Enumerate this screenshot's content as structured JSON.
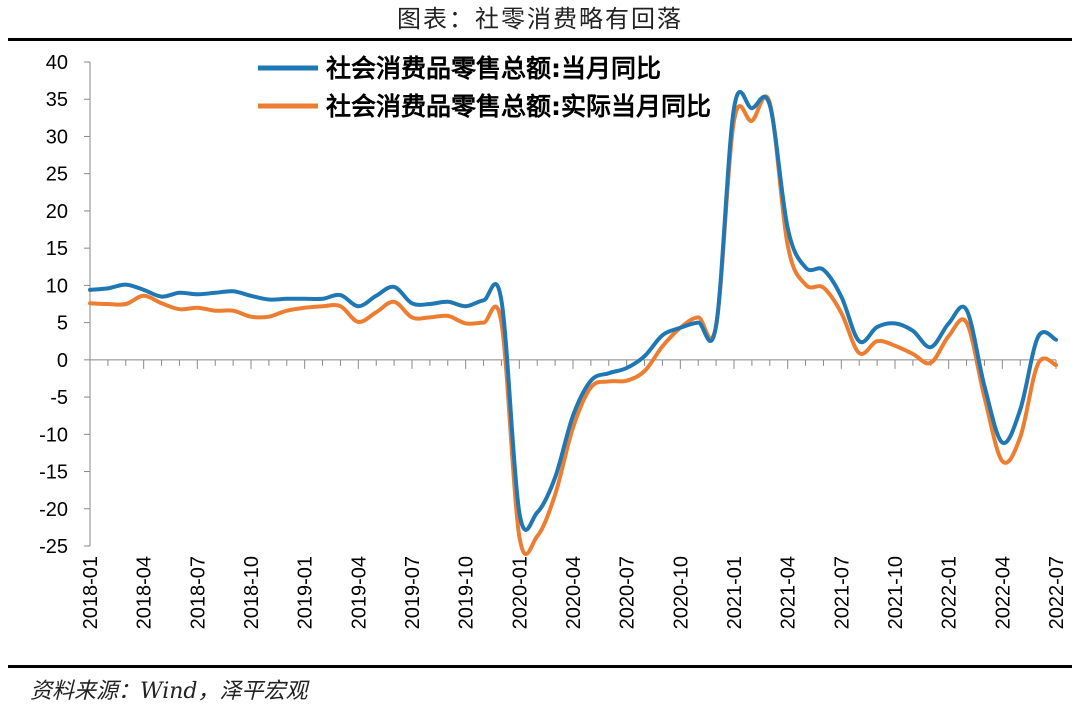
{
  "figure": {
    "title": "图表：社零消费略有回落",
    "source": "资料来源：Wind，泽平宏观"
  },
  "chart_data": {
    "type": "line",
    "title": "",
    "xlabel": "",
    "ylabel": "",
    "ylim": [
      -25,
      40
    ],
    "y_ticks": [
      -25,
      -20,
      -15,
      -10,
      -5,
      0,
      5,
      10,
      15,
      20,
      25,
      30,
      35,
      40
    ],
    "x_tick_labels": [
      "2018-01",
      "2018-04",
      "2018-07",
      "2018-10",
      "2019-01",
      "2019-04",
      "2019-07",
      "2019-10",
      "2020-01",
      "2020-04",
      "2020-07",
      "2020-10",
      "2021-01",
      "2021-04",
      "2021-07",
      "2021-10",
      "2022-01",
      "2022-04",
      "2022-07"
    ],
    "grid": false,
    "legend_position": "top-center",
    "x": [
      "2018-01",
      "2018-02",
      "2018-03",
      "2018-04",
      "2018-05",
      "2018-06",
      "2018-07",
      "2018-08",
      "2018-09",
      "2018-10",
      "2018-11",
      "2018-12",
      "2019-01",
      "2019-02",
      "2019-03",
      "2019-04",
      "2019-05",
      "2019-06",
      "2019-07",
      "2019-08",
      "2019-09",
      "2019-10",
      "2019-11",
      "2019-12",
      "2020-01",
      "2020-02",
      "2020-03",
      "2020-04",
      "2020-05",
      "2020-06",
      "2020-07",
      "2020-08",
      "2020-09",
      "2020-10",
      "2020-11",
      "2020-12",
      "2021-01",
      "2021-02",
      "2021-03",
      "2021-04",
      "2021-05",
      "2021-06",
      "2021-07",
      "2021-08",
      "2021-09",
      "2021-10",
      "2021-11",
      "2021-12",
      "2022-01",
      "2022-02",
      "2022-03",
      "2022-04",
      "2022-05",
      "2022-06",
      "2022-07"
    ],
    "series": [
      {
        "name": "社会消费品零售总额:当月同比",
        "color": "#1f77b4",
        "values": [
          9.4,
          9.6,
          10.1,
          9.4,
          8.5,
          9.0,
          8.8,
          9.0,
          9.2,
          8.6,
          8.1,
          8.2,
          8.2,
          8.2,
          8.7,
          7.2,
          8.6,
          9.8,
          7.6,
          7.5,
          7.8,
          7.2,
          8.0,
          8.0,
          -20.5,
          -20.5,
          -15.8,
          -7.5,
          -2.8,
          -1.8,
          -1.1,
          0.5,
          3.3,
          4.3,
          5.0,
          4.6,
          33.8,
          33.8,
          34.2,
          17.7,
          12.4,
          12.1,
          8.5,
          2.5,
          4.4,
          4.9,
          3.9,
          1.7,
          4.9,
          6.7,
          -3.5,
          -11.1,
          -6.7,
          3.1,
          2.7
        ]
      },
      {
        "name": "社会消费品零售总额:实际当月同比",
        "color": "#ed7d31",
        "values": [
          7.6,
          7.5,
          7.5,
          8.6,
          7.6,
          6.8,
          7.0,
          6.6,
          6.6,
          5.8,
          5.8,
          6.6,
          7.0,
          7.2,
          7.2,
          5.1,
          6.4,
          7.8,
          5.7,
          5.7,
          5.9,
          4.9,
          5.0,
          5.0,
          -23.7,
          -23.7,
          -18.1,
          -9.1,
          -3.7,
          -2.9,
          -2.8,
          -1.5,
          1.8,
          4.3,
          5.7,
          4.6,
          32.1,
          32.1,
          34.5,
          15.4,
          10.1,
          9.7,
          6.3,
          0.9,
          2.5,
          1.9,
          0.8,
          -0.4,
          3.2,
          5.0,
          -5.0,
          -13.6,
          -10.4,
          -0.5,
          -0.7
        ]
      }
    ]
  }
}
